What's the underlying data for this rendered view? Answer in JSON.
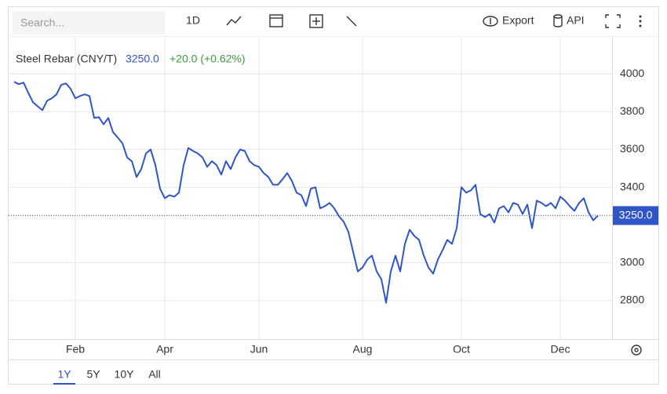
{
  "toolbar": {
    "search_placeholder": "Search...",
    "interval": "1D",
    "export": "Export",
    "api": "API"
  },
  "range_buttons": [
    "1Y",
    "5Y",
    "10Y",
    "All"
  ],
  "selected_range": "1Y",
  "chart_data": {
    "type": "line",
    "categories": [
      null,
      null,
      null,
      null,
      null,
      null,
      null,
      null,
      null,
      null,
      null,
      null,
      null,
      "Feb",
      null,
      null,
      null,
      null,
      null,
      null,
      null,
      null,
      null,
      null,
      null,
      null,
      null,
      null,
      null,
      null,
      null,
      null,
      "Apr",
      null,
      null,
      null,
      null,
      null,
      null,
      null,
      null,
      null,
      null,
      null,
      null,
      null,
      null,
      null,
      null,
      null,
      null,
      null,
      "Jun",
      null,
      null,
      null,
      null,
      null,
      null,
      null,
      null,
      null,
      null,
      null,
      null,
      null,
      null,
      null,
      null,
      null,
      null,
      null,
      null,
      null,
      "Aug",
      null,
      null,
      null,
      null,
      null,
      null,
      null,
      null,
      null,
      null,
      null,
      null,
      null,
      null,
      null,
      null,
      null,
      null,
      null,
      null,
      "Oct",
      null,
      null,
      null,
      null,
      null,
      null,
      null,
      null,
      null,
      null,
      null,
      null,
      null,
      null,
      null,
      null,
      null,
      null,
      null,
      null,
      "Dec",
      null,
      null,
      null,
      null,
      null,
      null,
      null,
      null
    ],
    "series": [
      {
        "name": "Steel Rebar (CNY/T)",
        "color": "#2f55c8",
        "values": [
          3958,
          3946,
          3954,
          3900,
          3850,
          3829,
          3808,
          3858,
          3871,
          3892,
          3942,
          3950,
          3921,
          3871,
          3883,
          3892,
          3883,
          3767,
          3771,
          3733,
          3767,
          3692,
          3663,
          3633,
          3558,
          3538,
          3454,
          3496,
          3579,
          3600,
          3517,
          3392,
          3342,
          3358,
          3350,
          3371,
          3517,
          3608,
          3592,
          3579,
          3558,
          3508,
          3538,
          3517,
          3467,
          3538,
          3496,
          3558,
          3600,
          3592,
          3538,
          3517,
          3508,
          3475,
          3454,
          3413,
          3413,
          3442,
          3475,
          3433,
          3371,
          3358,
          3300,
          3392,
          3400,
          3288,
          3300,
          3317,
          3288,
          3246,
          3217,
          3163,
          3058,
          2954,
          2975,
          3017,
          3038,
          2954,
          2913,
          2788,
          2954,
          3038,
          2954,
          3100,
          3175,
          3142,
          3121,
          3038,
          2975,
          2942,
          3017,
          3067,
          3121,
          3100,
          3183,
          3400,
          3371,
          3383,
          3413,
          3258,
          3242,
          3258,
          3213,
          3288,
          3300,
          3267,
          3317,
          3308,
          3258,
          3308,
          3183,
          3329,
          3317,
          3300,
          3317,
          3288,
          3350,
          3329,
          3300,
          3275,
          3317,
          3342,
          3267,
          3225,
          3250
        ]
      }
    ],
    "last_value_label": "3250.0",
    "change_label": "+20.0 (+0.62%)",
    "change_color": "#3a9a3a",
    "ylim": [
      2596,
      4192
    ],
    "yticks": [
      2800,
      3000,
      3400,
      3600,
      3800,
      4000
    ],
    "grid": true
  }
}
